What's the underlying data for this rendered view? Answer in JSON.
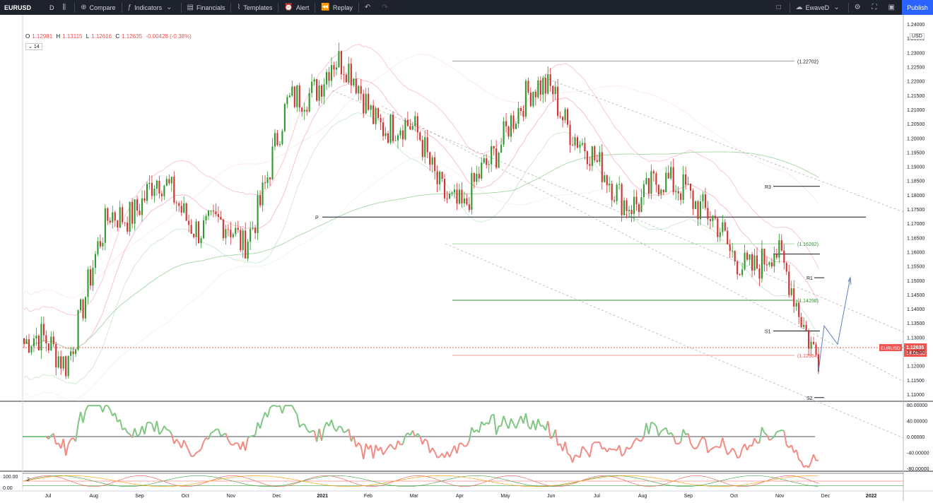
{
  "toolbar": {
    "symbol": "EURUSD",
    "interval": "D",
    "compare": "Compare",
    "indicators": "Indicators",
    "financials": "Financials",
    "templates": "Templates",
    "alert": "Alert",
    "replay": "Replay",
    "user": "EwaveD",
    "publish": "Publish"
  },
  "legend": {
    "o_label": "O",
    "o": "1.12981",
    "h_label": "H",
    "h": "1.13115",
    "l_label": "L",
    "l": "1.12616",
    "c_label": "C",
    "c": "1.12635",
    "change": "-0.00428 (-0.38%)",
    "indicator_length": "14"
  },
  "currency_selector": "USD",
  "price_tag": {
    "symbol": "EURUSD",
    "price": "1.12635",
    "countdown": "14:00:32"
  },
  "colors": {
    "up": "#26a69a",
    "down": "#ef5350",
    "candle_up": "#2e9a2e",
    "candle_down": "#d32f2f",
    "accent": "#2962ff",
    "rsi_up": "#81c784",
    "rsi_down": "#f28b82"
  },
  "chart_data": {
    "type": "line",
    "series_type": "candlestick",
    "symbol": "EURUSD",
    "x": [
      "Jul",
      "Aug",
      "Sep",
      "Oct",
      "Nov",
      "Dec",
      "2021",
      "Feb",
      "Mar",
      "Apr",
      "May",
      "Jun",
      "Jul",
      "Aug",
      "Sep",
      "Oct",
      "Nov",
      "Dec",
      "2022"
    ],
    "price_axis_ticks": [
      "1.24000",
      "1.23500",
      "1.23000",
      "1.22500",
      "1.22000",
      "1.21500",
      "1.21000",
      "1.20500",
      "1.20000",
      "1.19500",
      "1.19000",
      "1.18500",
      "1.18000",
      "1.17500",
      "1.17000",
      "1.16500",
      "1.16000",
      "1.15500",
      "1.15000",
      "1.14500",
      "1.14000",
      "1.13500",
      "1.13000",
      "1.12500",
      "1.12000",
      "1.11500",
      "1.11000"
    ],
    "ylim": [
      1.108,
      1.243
    ],
    "monthly_closes": [
      {
        "m": "Jul",
        "v": 1.124
      },
      {
        "m": "Aug",
        "v": 1.171
      },
      {
        "m": "Sep",
        "v": 1.183
      },
      {
        "m": "Oct",
        "v": 1.171
      },
      {
        "m": "Nov",
        "v": 1.163
      },
      {
        "m": "Dec",
        "v": 1.208
      },
      {
        "m": "2021",
        "v": 1.228
      },
      {
        "m": "Feb",
        "v": 1.209
      },
      {
        "m": "Mar",
        "v": 1.198
      },
      {
        "m": "Apr",
        "v": 1.172
      },
      {
        "m": "May",
        "v": 1.208
      },
      {
        "m": "Jun",
        "v": 1.218
      },
      {
        "m": "Jul",
        "v": 1.187
      },
      {
        "m": "Aug",
        "v": 1.178
      },
      {
        "m": "Sep",
        "v": 1.186
      },
      {
        "m": "Oct",
        "v": 1.158
      },
      {
        "m": "Nov",
        "v": 1.158
      },
      {
        "m": "Dec",
        "v": 1.126
      }
    ],
    "levels": [
      {
        "label": "(1.22702)",
        "value": 1.22702
      },
      {
        "label": "R3",
        "value": 1.183
      },
      {
        "label": "P",
        "value": 1.1722
      },
      {
        "label": "(1.16282)",
        "value": 1.16282
      },
      {
        "label": "R1",
        "value": 1.1509
      },
      {
        "label": "(1.14298)",
        "value": 1.14298
      },
      {
        "label": "S1",
        "value": 1.1322
      },
      {
        "label": "(1.12364)",
        "value": 1.12364
      },
      {
        "label": "S2",
        "value": 1.1088
      }
    ],
    "last_price": 1.12635,
    "oscillator": {
      "ticks": [
        "80.00000",
        "40.00000",
        "0.00000",
        "-40.00000",
        "-80.00000"
      ],
      "ylim": [
        -80,
        80
      ]
    },
    "lower_panel": {
      "label": "2",
      "ticks": [
        "100.00",
        "0.00"
      ]
    }
  }
}
